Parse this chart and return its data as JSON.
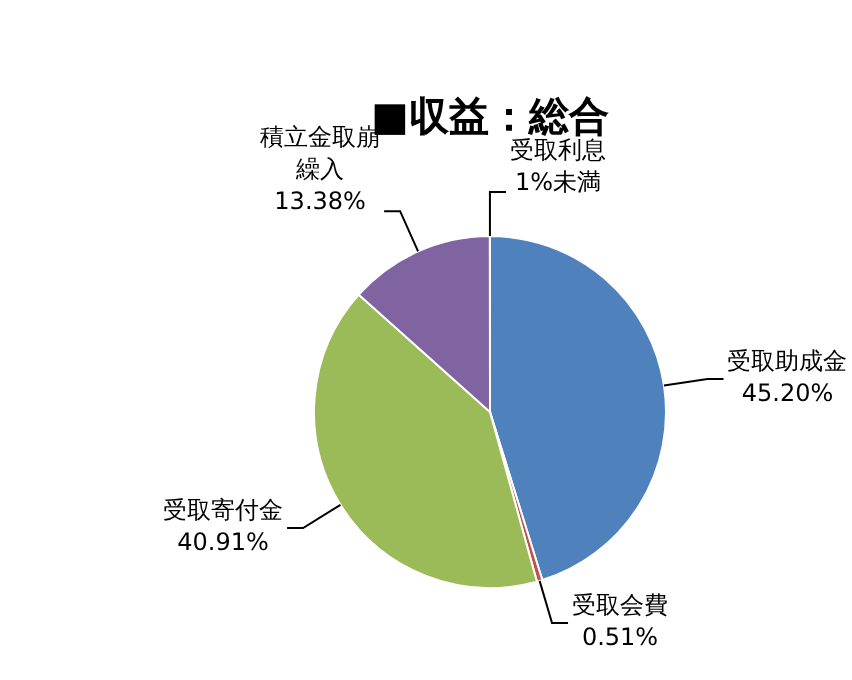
{
  "chart_data": {
    "type": "pie",
    "title": "■収益：総合",
    "categories": [
      "受取助成金",
      "受取会費",
      "受取寄付金",
      "積立金取崩繰入",
      "受取利息"
    ],
    "values": [
      45.2,
      0.51,
      40.91,
      13.38,
      0.01
    ],
    "value_labels": [
      "45.20%",
      "0.51%",
      "40.91%",
      "13.38%",
      "1%未満"
    ],
    "colors": [
      "#4f81bd",
      "#c0504d",
      "#9bbb59",
      "#8064a2",
      "#4bacc6"
    ]
  }
}
